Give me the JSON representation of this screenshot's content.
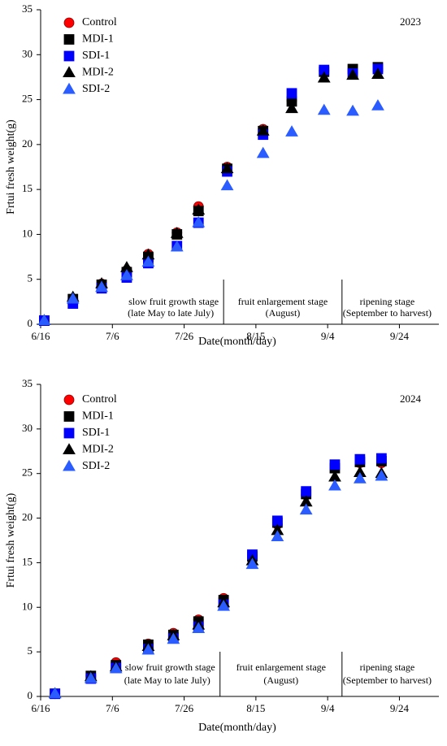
{
  "chart_data": [
    {
      "type": "scatter",
      "annotation": "2023",
      "xlabel": "Date(month/day)",
      "ylabel": "Frtui fresh weight(g)",
      "x": [
        168,
        176,
        184,
        191,
        197,
        205,
        211,
        219,
        229,
        237,
        246,
        254,
        261
      ],
      "series": [
        {
          "name": "Control",
          "color": "#ff0000",
          "marker": "circle",
          "values": [
            0.4,
            2.7,
            4.5,
            6.0,
            7.8,
            10.2,
            13.1,
            17.5,
            21.7,
            24.9,
            28.2,
            28.2,
            28.4
          ]
        },
        {
          "name": "MDI-1",
          "color": "#000000",
          "marker": "square",
          "values": [
            0.4,
            2.8,
            4.4,
            5.8,
            7.5,
            10.0,
            12.6,
            17.3,
            21.5,
            24.8,
            28.1,
            28.4,
            28.6
          ]
        },
        {
          "name": "SDI-1",
          "color": "#0000ff",
          "marker": "square",
          "values": [
            0.4,
            2.3,
            4.0,
            5.2,
            6.8,
            8.7,
            11.3,
            17.0,
            21.1,
            25.7,
            28.3,
            27.9,
            28.4
          ]
        },
        {
          "name": "MDI-2",
          "color": "#000000",
          "marker": "triangle",
          "values": [
            0.4,
            3.0,
            4.5,
            6.3,
            7.7,
            10.1,
            12.7,
            17.3,
            21.5,
            24.0,
            27.4,
            27.7,
            27.8
          ]
        },
        {
          "name": "SDI-2",
          "color": "#2a5cff",
          "marker": "triangle",
          "values": [
            0.4,
            2.8,
            4.1,
            5.4,
            6.9,
            8.6,
            11.3,
            15.4,
            19.0,
            21.4,
            23.8,
            23.7,
            24.3
          ]
        }
      ],
      "stage_boundaries": [
        218,
        251
      ],
      "stages": [
        {
          "name": "slow fruit growth stage",
          "period": "(late May to late July)"
        },
        {
          "name": "fruit enlargement stage",
          "period": "(August)"
        },
        {
          "name": "ripening stage",
          "period": "(September to harvest)"
        }
      ],
      "xlim": [
        167,
        278
      ],
      "xticks": [
        {
          "value": 167,
          "label": "6/16"
        },
        {
          "value": 187,
          "label": "7/6"
        },
        {
          "value": 207,
          "label": "7/26"
        },
        {
          "value": 227,
          "label": "8/15"
        },
        {
          "value": 247,
          "label": "9/4"
        },
        {
          "value": 267,
          "label": "9/24"
        }
      ],
      "ylim": [
        0,
        35
      ],
      "yticks": [
        0,
        5,
        10,
        15,
        20,
        25,
        30,
        35
      ],
      "legend": "upper left"
    },
    {
      "type": "scatter",
      "annotation": "2024",
      "xlabel": "Date(month/day)",
      "ylabel": "Frtui fresh weight(g)",
      "x": [
        171,
        181,
        188,
        197,
        204,
        211,
        218,
        226,
        233,
        241,
        249,
        256,
        262
      ],
      "series": [
        {
          "name": "Control",
          "color": "#ff0000",
          "marker": "circle",
          "values": [
            0.3,
            2.3,
            3.8,
            5.9,
            7.1,
            8.6,
            11.0,
            15.8,
            19.3,
            22.6,
            25.6,
            26.2,
            26.2
          ]
        },
        {
          "name": "MDI-1",
          "color": "#000000",
          "marker": "square",
          "values": [
            0.3,
            2.3,
            3.5,
            5.8,
            6.9,
            8.4,
            10.8,
            15.7,
            19.5,
            22.7,
            25.6,
            26.3,
            26.4
          ]
        },
        {
          "name": "SDI-1",
          "color": "#0000ff",
          "marker": "square",
          "values": [
            0.3,
            2.0,
            3.2,
            5.3,
            6.5,
            7.8,
            10.3,
            15.9,
            19.7,
            23.0,
            26.0,
            26.6,
            26.7
          ]
        },
        {
          "name": "MDI-2",
          "color": "#000000",
          "marker": "triangle",
          "values": [
            0.3,
            2.2,
            3.3,
            5.6,
            6.8,
            8.0,
            10.5,
            15.2,
            18.6,
            21.8,
            24.6,
            25.1,
            25.0
          ]
        },
        {
          "name": "SDI-2",
          "color": "#2a5cff",
          "marker": "triangle",
          "values": [
            0.3,
            2.0,
            3.1,
            5.2,
            6.4,
            7.6,
            10.1,
            14.8,
            17.9,
            20.9,
            23.6,
            24.4,
            24.7
          ]
        }
      ],
      "stage_boundaries": [
        217,
        251
      ],
      "stages": [
        {
          "name": "slow fruit growth stage",
          "period": "(late May to late July)"
        },
        {
          "name": "fruit enlargement stage",
          "period": "(August)"
        },
        {
          "name": "ripening stage",
          "period": "(September to harvest)"
        }
      ],
      "xlim": [
        167,
        278
      ],
      "xticks": [
        {
          "value": 167,
          "label": "6/16"
        },
        {
          "value": 187,
          "label": "7/6"
        },
        {
          "value": 207,
          "label": "7/26"
        },
        {
          "value": 227,
          "label": "8/15"
        },
        {
          "value": 247,
          "label": "9/4"
        },
        {
          "value": 267,
          "label": "9/24"
        }
      ],
      "ylim": [
        0,
        35
      ],
      "yticks": [
        0,
        5,
        10,
        15,
        20,
        25,
        30,
        35
      ],
      "legend": "upper left"
    }
  ]
}
